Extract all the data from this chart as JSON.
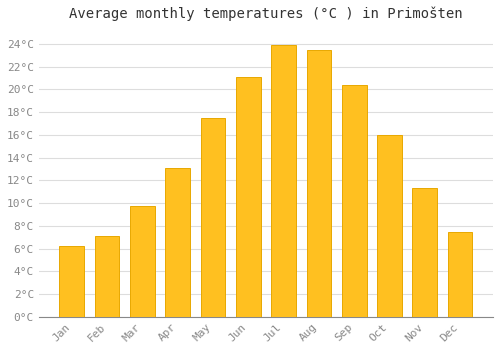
{
  "title": "Average monthly temperatures (°C ) in Primošten",
  "months": [
    "Jan",
    "Feb",
    "Mar",
    "Apr",
    "May",
    "Jun",
    "Jul",
    "Aug",
    "Sep",
    "Oct",
    "Nov",
    "Dec"
  ],
  "temperatures": [
    6.2,
    7.1,
    9.7,
    13.1,
    17.5,
    21.1,
    23.9,
    23.5,
    20.4,
    16.0,
    11.3,
    7.5
  ],
  "bar_color": "#FFC020",
  "bar_edge_color": "#E8A800",
  "background_color": "#FFFFFF",
  "plot_bg_color": "#FFFFFF",
  "grid_color": "#DDDDDD",
  "ylim": [
    0,
    25.5
  ],
  "yticks": [
    0,
    2,
    4,
    6,
    8,
    10,
    12,
    14,
    16,
    18,
    20,
    22,
    24
  ],
  "ytick_labels": [
    "0°C",
    "2°C",
    "4°C",
    "6°C",
    "8°C",
    "10°C",
    "12°C",
    "14°C",
    "16°C",
    "18°C",
    "20°C",
    "22°C",
    "24°C"
  ],
  "title_fontsize": 10,
  "tick_fontsize": 8,
  "font_family": "monospace",
  "tick_color": "#888888"
}
